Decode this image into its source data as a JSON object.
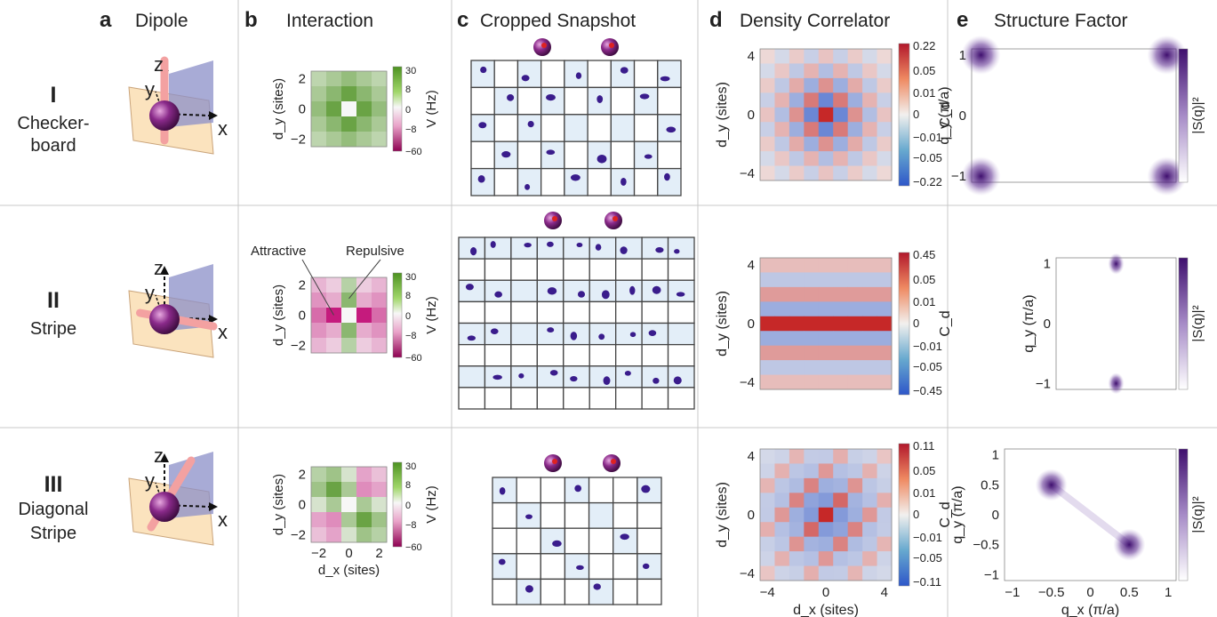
{
  "columns": [
    {
      "letter": "a",
      "title": "Dipole"
    },
    {
      "letter": "b",
      "title": "Interaction"
    },
    {
      "letter": "c",
      "title": "Cropped Snapshot"
    },
    {
      "letter": "d",
      "title": "Density Correlator"
    },
    {
      "letter": "e",
      "title": "Structure Factor"
    }
  ],
  "rows": [
    {
      "numeral": "I",
      "label_lines": [
        "Checker-",
        "board"
      ]
    },
    {
      "numeral": "II",
      "label_lines": [
        "Stripe"
      ]
    },
    {
      "numeral": "III",
      "label_lines": [
        "Diagonal",
        "Stripe"
      ]
    }
  ],
  "dipole_axes": {
    "x": "x",
    "y": "y",
    "z": "z"
  },
  "interaction_panel": {
    "ylabel": "d_y (sites)",
    "xlabel": "d_x (sites)",
    "yticks": [
      "2",
      "0",
      "−2"
    ],
    "xticks": [
      "−2",
      "0",
      "2"
    ],
    "colorbar_label": "V (Hz)",
    "colorbar_ticks": [
      "30",
      "8",
      "0",
      "−8",
      "−60"
    ],
    "annotations": [
      "Attractive",
      "Repulsive"
    ],
    "colors": {
      "positive": "#4d9221",
      "zero": "#f7f7f7",
      "negative": "#c51b7d"
    }
  },
  "correlator_panel": {
    "ylabel": "d_y (sites)",
    "xlabel": "d_x (sites)",
    "ticks": [
      "4",
      "0",
      "−4"
    ],
    "xticks": [
      "−4",
      "0",
      "4"
    ],
    "colorbar_label": "C_d",
    "colorbar_ticks": [
      [
        "0.22",
        "0.05",
        "0.01",
        "0",
        "−0.01",
        "−0.05",
        "−0.22"
      ],
      [
        "0.45",
        "0.05",
        "0.01",
        "0",
        "−0.01",
        "−0.05",
        "−0.45"
      ],
      [
        "0.11",
        "0.05",
        "0.01",
        "0",
        "−0.01",
        "−0.05",
        "−0.11"
      ]
    ],
    "colors": {
      "positive": "#c62828",
      "zero": "#f2f0ee",
      "negative": "#2e57c9"
    }
  },
  "structure_panel": {
    "ylabel": "q_y (π/a)",
    "xlabel": "q_x (π/a)",
    "ticks_rows_1_2": [
      "1",
      "0",
      "−1"
    ],
    "ticks_row_3": [
      "1",
      "0.5",
      "0",
      "−0.5",
      "−1"
    ],
    "xticks_row_3": [
      "−1",
      "−0.5",
      "0",
      "0.5",
      "1"
    ],
    "colorbar_label": "|S(q)|²",
    "peak_color": "#3f0f6e"
  },
  "chart_data": [
    {
      "type": "heatmap",
      "title": "Interaction",
      "rows": [
        "I",
        "II",
        "III"
      ],
      "x": [
        -2,
        -1,
        0,
        1,
        2
      ],
      "y": [
        2,
        1,
        0,
        -1,
        -2
      ],
      "zlabel": "V (Hz)",
      "zlim": [
        -60,
        30
      ],
      "values": [
        [
          [
            5,
            8,
            12,
            8,
            5
          ],
          [
            8,
            14,
            22,
            14,
            8
          ],
          [
            12,
            22,
            0,
            22,
            12
          ],
          [
            8,
            14,
            22,
            14,
            8
          ],
          [
            5,
            8,
            12,
            8,
            5
          ]
        ],
        [
          [
            -8,
            -4,
            6,
            -4,
            -8
          ],
          [
            -16,
            -10,
            14,
            -10,
            -16
          ],
          [
            -28,
            -60,
            0,
            -60,
            -28
          ],
          [
            -16,
            -10,
            14,
            -10,
            -16
          ],
          [
            -8,
            -4,
            6,
            -4,
            -8
          ]
        ],
        [
          [
            6,
            10,
            2,
            -12,
            -6
          ],
          [
            10,
            22,
            8,
            -18,
            -12
          ],
          [
            2,
            8,
            0,
            8,
            2
          ],
          [
            -12,
            -18,
            8,
            22,
            10
          ],
          [
            -6,
            -12,
            2,
            10,
            6
          ]
        ]
      ]
    },
    {
      "type": "heatmap",
      "title": "Density Correlator",
      "rows": [
        "I",
        "II",
        "III"
      ],
      "x": [
        -4,
        -3,
        -2,
        -1,
        0,
        1,
        2,
        3,
        4
      ],
      "y": [
        4,
        3,
        2,
        1,
        0,
        -1,
        -2,
        -3,
        -4
      ],
      "zlabel": "C_d",
      "zlim": [
        [
          -0.22,
          0.22
        ],
        [
          -0.45,
          0.45
        ],
        [
          -0.11,
          0.11
        ]
      ],
      "pattern": [
        "checkerboard",
        "stripe",
        "diagonal-stripe"
      ]
    },
    {
      "type": "scatter",
      "title": "Structure Factor",
      "rows": [
        "I",
        "II",
        "III"
      ],
      "xlabel": "q_x (π/a)",
      "ylabel": "q_y (π/a)",
      "xlim": [
        -1.1,
        1.1
      ],
      "ylim": [
        -1.1,
        1.1
      ],
      "peaks": [
        [
          [
            -1,
            1
          ],
          [
            1,
            1
          ],
          [
            -1,
            -1
          ],
          [
            1,
            -1
          ]
        ],
        [
          [
            0,
            1
          ],
          [
            0,
            -1
          ]
        ],
        [
          [
            -0.5,
            0.5
          ],
          [
            0.5,
            -0.5
          ]
        ]
      ]
    }
  ]
}
